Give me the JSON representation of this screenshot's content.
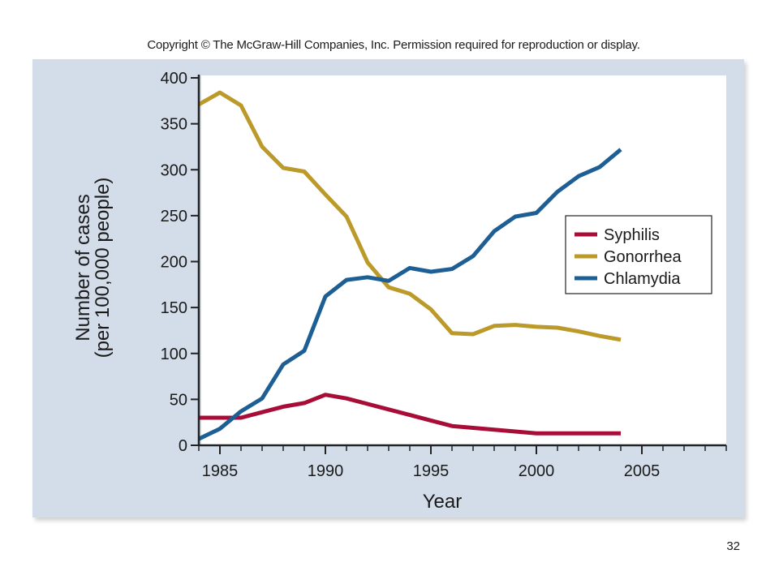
{
  "copyright": "Copyright © The McGraw-Hill Companies, Inc. Permission required for reproduction or display.",
  "page_number": "32",
  "chart_data": {
    "type": "line",
    "title": "",
    "xlabel": "Year",
    "ylabel_lines": [
      "Number of cases",
      "(per 100,000 people)"
    ],
    "xlim": [
      1984,
      2009
    ],
    "ylim": [
      0,
      400
    ],
    "xticks": [
      1985,
      1990,
      1995,
      2000,
      2005
    ],
    "yticks": [
      0,
      50,
      100,
      150,
      200,
      250,
      300,
      350,
      400
    ],
    "grid": false,
    "legend_position": "right",
    "series": [
      {
        "name": "Syphilis",
        "color": "#a80d37",
        "x": [
          1984,
          1985,
          1986,
          1987,
          1988,
          1989,
          1990,
          1991,
          1992,
          1993,
          1994,
          1995,
          1996,
          1997,
          1998,
          1999,
          2000,
          2001,
          2002,
          2003,
          2004
        ],
        "values": [
          30,
          30,
          30,
          36,
          42,
          46,
          55,
          51,
          45,
          39,
          33,
          27,
          21,
          19,
          17,
          15,
          13,
          13,
          13,
          13,
          13
        ]
      },
      {
        "name": "Gonorrhea",
        "color": "#bb9a2a",
        "x": [
          1984,
          1985,
          1986,
          1987,
          1988,
          1989,
          1990,
          1991,
          1992,
          1993,
          1994,
          1995,
          1996,
          1997,
          1998,
          1999,
          2000,
          2001,
          2002,
          2003,
          2004
        ],
        "values": [
          371,
          384,
          370,
          325,
          302,
          298,
          273,
          249,
          199,
          172,
          165,
          148,
          122,
          121,
          130,
          131,
          129,
          128,
          124,
          119,
          115
        ]
      },
      {
        "name": "Chlamydia",
        "color": "#1d5f94",
        "x": [
          1984,
          1985,
          1986,
          1987,
          1988,
          1989,
          1990,
          1991,
          1992,
          1993,
          1994,
          1995,
          1996,
          1997,
          1998,
          1999,
          2000,
          2001,
          2002,
          2003,
          2004
        ],
        "values": [
          7,
          18,
          37,
          51,
          88,
          103,
          162,
          180,
          183,
          179,
          193,
          189,
          192,
          206,
          233,
          249,
          253,
          276,
          293,
          303,
          322
        ]
      }
    ]
  }
}
